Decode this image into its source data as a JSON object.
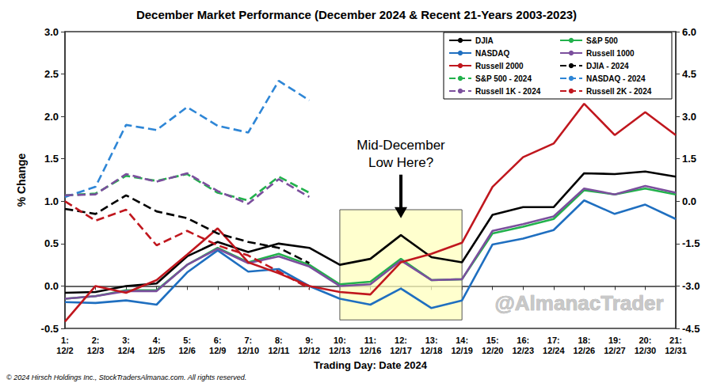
{
  "chart_data": {
    "type": "line",
    "title": "December Market Performance (December 2024 & Recent 21-Years 2003-2023)",
    "x_label": "Trading Day: Date 2024",
    "y_label": "% Change",
    "categories": [
      "1:\n12/2",
      "2:\n12/3",
      "3:\n12/4",
      "4:\n12/5",
      "5:\n12/6",
      "6:\n12/9",
      "7:\n12/10",
      "8:\n12/11",
      "9:\n12/12",
      "10:\n12/13",
      "11:\n12/16",
      "12:\n12/17",
      "13:\n12/18",
      "14:\n12/19",
      "15:\n12/20",
      "16:\n12/23",
      "17:\n12/24",
      "18:\n12/26",
      "19:\n12/27",
      "20:\n12/30",
      "21:\n12/31"
    ],
    "ylim": [
      -0.5,
      3.0
    ],
    "yticks": [
      -0.5,
      {
        "value": 0,
        "label": "0.0"
      },
      0.5,
      {
        "value": 1,
        "label": "1.0"
      },
      1.5,
      {
        "value": 2,
        "label": "2.0"
      },
      2.5,
      {
        "value": 3,
        "label": "3.0"
      }
    ],
    "y2lim": [
      -4.5,
      6.0
    ],
    "y2ticks": [
      -4.5,
      {
        "value": -3,
        "label": "-3.0"
      },
      -1.5,
      {
        "value": 0,
        "label": "0.0"
      },
      1.5,
      {
        "value": 3,
        "label": "3.0"
      },
      4.5,
      {
        "value": 6,
        "label": "6.0"
      }
    ],
    "grid": false,
    "legend": "upper right",
    "series": [
      {
        "name": "DJIA",
        "color": "#000000",
        "line_style": "solid",
        "values": [
          -0.08,
          -0.07,
          0.0,
          0.03,
          0.35,
          0.52,
          0.4,
          0.5,
          0.45,
          0.25,
          0.32,
          0.6,
          0.34,
          0.28,
          0.84,
          0.93,
          0.93,
          1.33,
          1.32,
          1.35,
          1.29
        ]
      },
      {
        "name": "S&P 500",
        "color": "#22b14c",
        "line_style": "solid",
        "values": [
          -0.15,
          -0.12,
          -0.05,
          -0.05,
          0.25,
          0.45,
          0.28,
          0.38,
          0.25,
          0.02,
          0.05,
          0.32,
          0.07,
          0.08,
          0.62,
          0.7,
          0.79,
          1.13,
          1.08,
          1.15,
          1.08
        ]
      },
      {
        "name": "NASDAQ",
        "color": "#1f6fc0",
        "line_style": "solid",
        "values": [
          -0.19,
          -0.2,
          -0.17,
          -0.22,
          0.16,
          0.42,
          0.17,
          0.2,
          0.0,
          -0.15,
          -0.22,
          -0.03,
          -0.26,
          -0.17,
          0.49,
          0.56,
          0.66,
          1.01,
          0.85,
          0.96,
          0.79
        ]
      },
      {
        "name": "Russell 1000",
        "color": "#7b4f9d",
        "line_style": "solid",
        "values": [
          -0.15,
          -0.12,
          -0.06,
          -0.06,
          0.25,
          0.44,
          0.27,
          0.35,
          0.23,
          0.0,
          0.02,
          0.3,
          0.07,
          0.08,
          0.65,
          0.73,
          0.82,
          1.15,
          1.08,
          1.18,
          1.1
        ]
      },
      {
        "name": "Russell 2000",
        "color": "#c0171e",
        "line_style": "solid",
        "values": [
          -0.42,
          0.0,
          -0.08,
          0.07,
          0.37,
          0.68,
          0.28,
          0.15,
          0.0,
          -0.07,
          -0.1,
          0.28,
          0.38,
          0.51,
          1.17,
          1.52,
          1.68,
          2.15,
          1.78,
          2.05,
          1.78
        ]
      },
      {
        "name": "DJIA - 2024",
        "color": "#000000",
        "line_style": "dashed",
        "axis": "y2",
        "values": [
          -0.27,
          -0.45,
          0.21,
          -0.36,
          -0.6,
          -1.14,
          -1.44,
          -1.65,
          -2.19,
          null,
          null,
          null,
          null,
          null,
          null,
          null,
          null,
          null,
          null,
          null,
          null
        ]
      },
      {
        "name": "S&P 500 - 2024",
        "color": "#22b14c",
        "line_style": "dashed",
        "axis": "y2",
        "values": [
          0.21,
          0.27,
          0.9,
          0.72,
          0.96,
          0.3,
          0.03,
          0.87,
          0.3,
          null,
          null,
          null,
          null,
          null,
          null,
          null,
          null,
          null,
          null,
          null,
          null
        ]
      },
      {
        "name": "NASDAQ - 2024",
        "color": "#2e86d6",
        "line_style": "dashed",
        "axis": "y2",
        "values": [
          0.15,
          0.51,
          2.7,
          2.52,
          3.33,
          2.67,
          2.43,
          4.26,
          3.57,
          null,
          null,
          null,
          null,
          null,
          null,
          null,
          null,
          null,
          null,
          null,
          null
        ]
      },
      {
        "name": "Russell 1K - 2024",
        "color": "#7b4f9d",
        "line_style": "dashed",
        "axis": "y2",
        "values": [
          0.21,
          0.24,
          0.96,
          0.69,
          0.99,
          0.36,
          -0.09,
          0.78,
          0.15,
          null,
          null,
          null,
          null,
          null,
          null,
          null,
          null,
          null,
          null,
          null,
          null
        ]
      },
      {
        "name": "Russell 2K - 2024",
        "color": "#c0171e",
        "line_style": "dashed",
        "axis": "y2",
        "values": [
          0.0,
          -0.69,
          -0.3,
          -1.56,
          -1.05,
          -1.56,
          -1.92,
          -2.49,
          -3.09,
          null,
          null,
          null,
          null,
          null,
          null,
          null,
          null,
          null,
          null,
          null,
          null
        ]
      }
    ],
    "annotations": [
      {
        "text": "Mid-December\nLow Here?",
        "x": [
          "10:\n12/13",
          "14:\n12/19"
        ],
        "y": [
          -0.4,
          0.9
        ],
        "arrow_x": "12:\n12/17",
        "arrow_y": 0.8
      }
    ],
    "footer": "© 2024 Hirsch Holdings Inc., StockTradersAlmanac.com. All rights reserved.",
    "watermark": "@AlmanacTrader"
  }
}
